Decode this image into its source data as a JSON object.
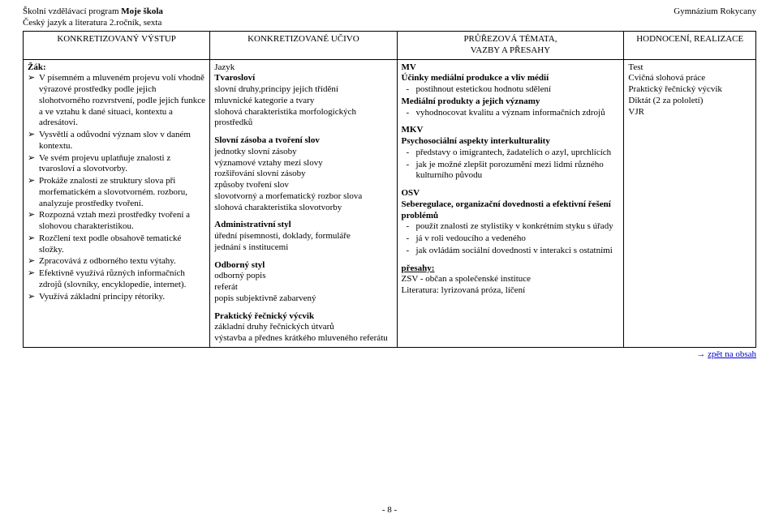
{
  "header": {
    "program_label": "Školní vzdělávací program",
    "program_name": "Moje škola",
    "subject_line": "Český jazyk a literatura  2.ročník, sexta",
    "school": "Gymnázium Rokycany"
  },
  "table": {
    "headers": {
      "c1": "KONKRETIZOVANÝ VÝSTUP",
      "c2": "KONKRETIZOVANÉ UČIVO",
      "c3a": "PRŮŘEZOVÁ TÉMATA,",
      "c3b": "VAZBY A PŘESAHY",
      "c4": "HODNOCENÍ, REALIZACE"
    },
    "col1": {
      "lead": "Žák:",
      "items": [
        "V písemném a mluveném projevu volí vhodně výrazové prostředky podle jejich slohotvorného rozvrstvení, podle jejich funkce a ve vztahu k dané situaci, kontextu a adresátovi.",
        "Vysvětlí a odůvodní význam slov v daném kontextu.",
        "Ve svém projevu uplatňuje znalosti z tvarosloví a slovotvorby.",
        "Prokáže znalosti ze struktury slova při morfematickém a slovotvorném. rozboru, analyzuje prostředky tvoření.",
        "Rozpozná vztah mezi prostředky tvoření a slohovou charakteristikou.",
        "Rozčlení text podle obsahově tematické složky.",
        "Zpracovává z odborného textu výtahy.",
        "Efektivně využívá různých informačních zdrojů (slovníky, encyklopedie, internet).",
        "Využívá základní principy rétoriky."
      ]
    },
    "col2": {
      "h_jazyk": "Jazyk",
      "h_tvaro": "Tvarosloví",
      "tvaro_lines": [
        "slovní druhy,principy jejich třídění",
        "mluvnické kategorie a tvary",
        "slohová charakteristika morfologických prostředků"
      ],
      "h_slovni": "Slovní zásoba a tvoření slov",
      "slovni_lines": [
        "jednotky slovní zásoby",
        "významové vztahy mezi slovy",
        "rozšiřování slovní zásoby",
        "způsoby tvoření slov",
        "slovotvorný a morfematický rozbor slova",
        "slohová charakteristika slovotvorby"
      ],
      "h_admin": "Administrativní styl",
      "admin_lines": [
        "úřední písemnosti, doklady, formuláře",
        "jednání s institucemi"
      ],
      "h_odborny": "Odborný styl",
      "odborny_lines": [
        "odborný popis",
        "referát",
        "popis subjektivně zabarvený"
      ],
      "h_recnicky": "Praktický řečnický výcvik",
      "recnicky_lines": [
        "základní druhy řečnických útvarů",
        "výstavba a přednes krátkého mluveného referátu"
      ]
    },
    "col3": {
      "h_mv": "MV",
      "mv_sub1": "Účinky mediální produkce a vliv médií",
      "mv_sub1_items": [
        "postihnout estetickou hodnotu sdělení"
      ],
      "mv_sub2": "Mediální produkty a jejich významy",
      "mv_sub2_items": [
        "vyhodnocovat kvalitu a význam informačních zdrojů"
      ],
      "h_mkv": "MKV",
      "mkv_sub": "Psychosociální aspekty interkulturality",
      "mkv_items": [
        "představy o imigrantech, žadatelích o azyl, uprchlících",
        "jak je možné zlepšit porozumění mezi lidmi různého kulturního původu"
      ],
      "h_osv": "OSV",
      "osv_sub": "Seberegulace, organizační dovednosti a efektivní řešení problémů",
      "osv_items": [
        "použít znalosti ze stylistiky v konkrétním styku s úřady",
        "já v roli vedoucího a vedeného",
        "jak ovládám sociální dovednosti v interakci s ostatními"
      ],
      "h_presahy": "přesahy:",
      "presahy_lines": [
        "ZSV - občan a společenské instituce",
        "Literatura: lyrizovaná próza, líčení"
      ]
    },
    "col4": {
      "lines": [
        "Test",
        "Cvičná slohová práce",
        "Praktický řečnický výcvik",
        "Diktát (2 za pololetí)",
        "VJR"
      ]
    }
  },
  "footer": {
    "back_arrow": "→",
    "back_text": "zpět na obsah",
    "page": "- 8 -"
  }
}
